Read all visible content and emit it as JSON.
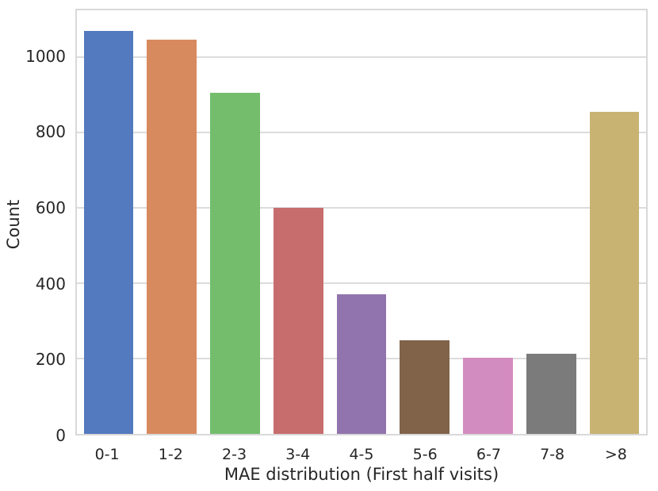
{
  "chart_data": {
    "type": "bar",
    "title": "",
    "xlabel": "MAE distribution (First half visits)",
    "ylabel": "Count",
    "categories": [
      "0-1",
      "1-2",
      "2-3",
      "3-4",
      "4-5",
      "5-6",
      "6-7",
      "7-8",
      ">8"
    ],
    "values": [
      1070,
      1048,
      905,
      600,
      370,
      248,
      203,
      213,
      856
    ],
    "bar_colors": [
      "#5379be",
      "#d88a5f",
      "#73bd6d",
      "#c76d6e",
      "#9174ad",
      "#806349",
      "#d38cbf",
      "#7b7b7b",
      "#c8b373"
    ],
    "yticks": [
      0,
      200,
      400,
      600,
      800,
      1000
    ],
    "ytick_labels": [
      "0",
      "200",
      "400",
      "600",
      "800",
      "1000"
    ],
    "ylim": [
      0,
      1125
    ],
    "grid": "horizontal",
    "legend": "none",
    "background_color": "#ffffff",
    "spine_color": "#d9d9d9",
    "grid_color": "#dcdcdc",
    "text_color": "#262626"
  }
}
